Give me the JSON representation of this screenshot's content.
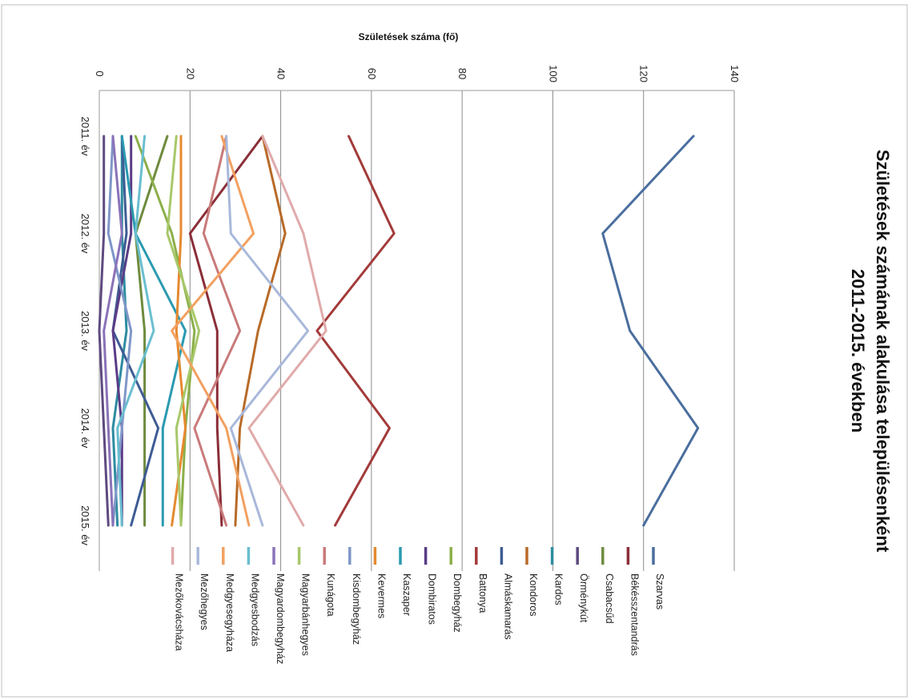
{
  "chart_data": {
    "type": "line",
    "title": "Születések számának alakulása településenként 2011-2015. években",
    "title_line1": "Születések számának alakulása településenként",
    "title_line2": "2011-2015. években",
    "ylabel": "Születések száma (fő)",
    "xlabel": "",
    "orientation": "rotated 90° clockwise",
    "categories": [
      "2011. év",
      "2012. év",
      "2013. év",
      "2014. év",
      "2015. év"
    ],
    "yticks": [
      "0",
      "20",
      "40",
      "60",
      "80",
      "100",
      "120",
      "140"
    ],
    "ylim": [
      0,
      140
    ],
    "grid": true,
    "legend_position": "bottom",
    "series": [
      {
        "name": "Szarvas",
        "color": "#4A6E9E",
        "values": [
          131,
          111,
          117,
          132,
          120
        ]
      },
      {
        "name": "Békésszentandrás",
        "color": "#8B2E38",
        "values": [
          36,
          20,
          26,
          26,
          27
        ]
      },
      {
        "name": "Csabacsűd",
        "color": "#6E8B3D",
        "values": [
          15,
          8,
          10,
          10,
          10
        ]
      },
      {
        "name": "Örménykút",
        "color": "#5E4A80",
        "values": [
          1,
          1,
          0,
          1,
          2
        ]
      },
      {
        "name": "Kardos",
        "color": "#2E8CA0",
        "values": [
          5,
          5,
          6,
          3,
          4
        ]
      },
      {
        "name": "Kondoros",
        "color": "#B86A28",
        "values": [
          36,
          41,
          35,
          31,
          30
        ]
      },
      {
        "name": "Almáskamarás",
        "color": "#3E5C94",
        "values": [
          5,
          6,
          3,
          13,
          7
        ]
      },
      {
        "name": "Battonya",
        "color": "#A33A3A",
        "values": [
          55,
          65,
          48,
          64,
          52
        ]
      },
      {
        "name": "Dombegyház",
        "color": "#8CAF4A",
        "values": [
          8,
          16,
          21,
          19,
          18
        ]
      },
      {
        "name": "Dombiratos",
        "color": "#5A3C86",
        "values": [
          7,
          7,
          3,
          5,
          5
        ]
      },
      {
        "name": "Kaszaper",
        "color": "#2A9AB0",
        "values": [
          5,
          8,
          19,
          14,
          14
        ]
      },
      {
        "name": "Kevermes",
        "color": "#E58A30",
        "values": [
          18,
          18,
          17,
          19,
          16
        ]
      },
      {
        "name": "Kisdombegyház",
        "color": "#7F97C8",
        "values": [
          3,
          2,
          7,
          5,
          3
        ]
      },
      {
        "name": "Kunágota",
        "color": "#C97A7A",
        "values": [
          28,
          23,
          31,
          21,
          28
        ]
      },
      {
        "name": "Magyarbánhegyes",
        "color": "#A8C86A",
        "values": [
          17,
          15,
          22,
          17,
          18
        ]
      },
      {
        "name": "Magyardombegyház",
        "color": "#8A72B8",
        "values": [
          3,
          5,
          1,
          2,
          3
        ]
      },
      {
        "name": "Medgyesbodzás",
        "color": "#6ABED0",
        "values": [
          10,
          8,
          12,
          4,
          5
        ]
      },
      {
        "name": "Medgyesegyháza",
        "color": "#F2A060",
        "values": [
          27,
          34,
          16,
          28,
          33
        ]
      },
      {
        "name": "Mezőhegyes",
        "color": "#A8B8DA",
        "values": [
          28,
          29,
          46,
          29,
          36
        ]
      },
      {
        "name": "Mezőkovácsháza",
        "color": "#E0AAAA",
        "values": [
          36,
          45,
          50,
          33,
          45
        ]
      }
    ]
  }
}
